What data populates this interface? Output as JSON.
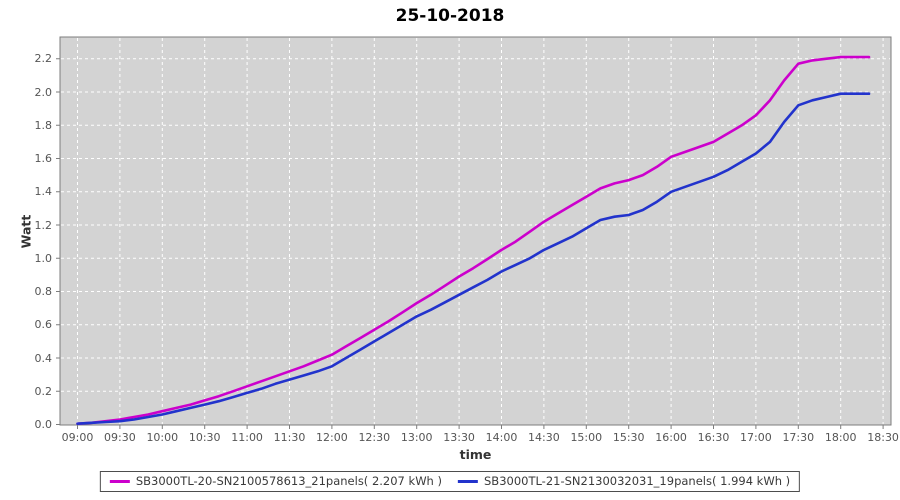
{
  "title": "25-10-2018",
  "axes": {
    "x_label": "time",
    "y_label": "Watt",
    "x_ticks": [
      "09:00",
      "09:30",
      "10:00",
      "10:30",
      "11:00",
      "11:30",
      "12:00",
      "12:30",
      "13:00",
      "13:30",
      "14:00",
      "14:30",
      "15:00",
      "15:30",
      "16:00",
      "16:30",
      "17:00",
      "17:30",
      "18:00",
      "18:30"
    ],
    "y_ticks": [
      "0.0",
      "0.2",
      "0.4",
      "0.6",
      "0.8",
      "1.0",
      "1.2",
      "1.4",
      "1.6",
      "1.8",
      "2.0",
      "2.2"
    ]
  },
  "style": {
    "plot_background": "#d3d3d3",
    "plot_border": "#7d7d7d",
    "gridline_color": "#ffffff",
    "tick_color": "#7d7d7d"
  },
  "chart_data": {
    "type": "line",
    "title": "25-10-2018",
    "xlabel": "time",
    "ylabel": "Watt",
    "ylim": [
      0,
      2.33
    ],
    "grid": true,
    "grid_style": "white-dashed",
    "legend_position": "bottom",
    "x": [
      "09:00",
      "09:10",
      "09:20",
      "09:30",
      "09:40",
      "09:50",
      "10:00",
      "10:10",
      "10:20",
      "10:30",
      "10:40",
      "10:50",
      "11:00",
      "11:10",
      "11:20",
      "11:30",
      "11:40",
      "11:50",
      "12:00",
      "12:10",
      "12:20",
      "12:30",
      "12:40",
      "12:50",
      "13:00",
      "13:10",
      "13:20",
      "13:30",
      "13:40",
      "13:50",
      "14:00",
      "14:10",
      "14:20",
      "14:30",
      "14:40",
      "14:50",
      "15:00",
      "15:10",
      "15:20",
      "15:30",
      "15:40",
      "15:50",
      "16:00",
      "16:10",
      "16:20",
      "16:30",
      "16:40",
      "16:50",
      "17:00",
      "17:10",
      "17:20",
      "17:30",
      "17:40",
      "17:50",
      "18:00",
      "18:10",
      "18:20"
    ],
    "series": [
      {
        "name": "SB3000TL-20-SN2100578613_21panels( 2.207 kWh )",
        "color": "#cc00cc",
        "total_kwh": "2.207",
        "values": [
          0.005,
          0.01,
          0.02,
          0.03,
          0.045,
          0.06,
          0.08,
          0.1,
          0.12,
          0.145,
          0.17,
          0.2,
          0.23,
          0.26,
          0.29,
          0.32,
          0.35,
          0.385,
          0.42,
          0.47,
          0.52,
          0.57,
          0.62,
          0.675,
          0.73,
          0.78,
          0.835,
          0.89,
          0.94,
          0.995,
          1.05,
          1.1,
          1.16,
          1.22,
          1.27,
          1.32,
          1.37,
          1.42,
          1.45,
          1.47,
          1.5,
          1.55,
          1.61,
          1.64,
          1.67,
          1.7,
          1.75,
          1.8,
          1.86,
          1.95,
          2.07,
          2.17,
          2.19,
          2.2,
          2.21,
          2.21,
          2.21
        ]
      },
      {
        "name": "SB3000TL-21-SN2130032031_19panels( 1.994 kWh )",
        "color": "#2233cc",
        "total_kwh": "1.994",
        "values": [
          0.005,
          0.01,
          0.015,
          0.02,
          0.03,
          0.045,
          0.06,
          0.08,
          0.1,
          0.12,
          0.14,
          0.165,
          0.19,
          0.215,
          0.245,
          0.27,
          0.295,
          0.32,
          0.35,
          0.4,
          0.45,
          0.5,
          0.55,
          0.6,
          0.65,
          0.69,
          0.735,
          0.78,
          0.825,
          0.87,
          0.92,
          0.96,
          1.0,
          1.05,
          1.09,
          1.13,
          1.18,
          1.23,
          1.25,
          1.26,
          1.29,
          1.34,
          1.4,
          1.43,
          1.46,
          1.49,
          1.53,
          1.58,
          1.63,
          1.7,
          1.82,
          1.92,
          1.95,
          1.97,
          1.99,
          1.99,
          1.99
        ]
      }
    ]
  }
}
